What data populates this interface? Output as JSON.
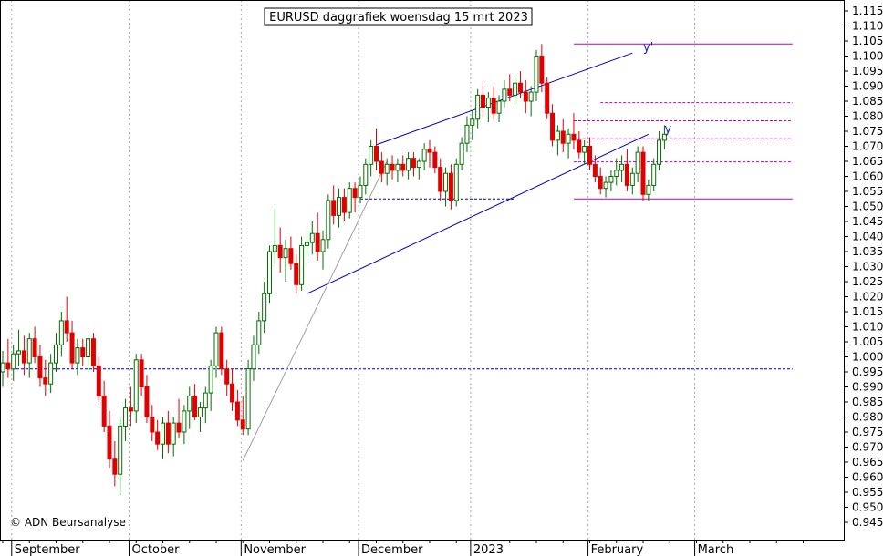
{
  "chart_data": {
    "type": "candlestick",
    "title": "EURUSD daggrafiek woensdag 15 mrt 2023",
    "copyright": "© ADN Beursanalyse",
    "ylim": [
      0.942,
      1.118
    ],
    "yticks": [
      "1.115",
      "1.110",
      "1.105",
      "1.100",
      "1.095",
      "1.090",
      "1.085",
      "1.080",
      "1.075",
      "1.070",
      "1.065",
      "1.060",
      "1.055",
      "1.050",
      "1.045",
      "1.040",
      "1.035",
      "1.030",
      "1.025",
      "1.020",
      "1.015",
      "1.010",
      "1.005",
      "1.000",
      "0.995",
      "0.990",
      "0.985",
      "0.980",
      "0.975",
      "0.970",
      "0.965",
      "0.960",
      "0.955",
      "0.950",
      "0.945"
    ],
    "months": [
      {
        "label": "September",
        "start_index": 2
      },
      {
        "label": "October",
        "start_index": 24
      },
      {
        "label": "November",
        "start_index": 45
      },
      {
        "label": "December",
        "start_index": 67
      },
      {
        "label": "2023",
        "start_index": 88
      },
      {
        "label": "February",
        "start_index": 110
      },
      {
        "label": "March",
        "start_index": 130
      }
    ],
    "candles": [
      [
        0.995,
        1.002,
        0.99,
        0.998
      ],
      [
        0.998,
        1.006,
        0.993,
        0.996
      ],
      [
        0.996,
        1.004,
        0.992,
        1.001
      ],
      [
        1.001,
        1.009,
        0.997,
        1.002
      ],
      [
        1.002,
        1.007,
        0.994,
        0.998
      ],
      [
        0.998,
        1.008,
        0.993,
        1.006
      ],
      [
        1.006,
        1.01,
        0.998,
        1.0
      ],
      [
        1.0,
        1.004,
        0.99,
        0.993
      ],
      [
        0.993,
        0.999,
        0.987,
        0.991
      ],
      [
        0.991,
        1.001,
        0.988,
        0.998
      ],
      [
        0.998,
        1.008,
        0.995,
        1.004
      ],
      [
        1.004,
        1.015,
        1.0,
        1.012
      ],
      [
        1.012,
        1.02,
        1.005,
        1.008
      ],
      [
        1.008,
        1.012,
        0.996,
        0.998
      ],
      [
        0.998,
        1.006,
        0.994,
        1.003
      ],
      [
        1.003,
        1.006,
        0.997,
        1.0
      ],
      [
        1.0,
        1.007,
        0.995,
        1.006
      ],
      [
        1.006,
        1.008,
        0.995,
        0.997
      ],
      [
        0.997,
        1.0,
        0.985,
        0.987
      ],
      [
        0.987,
        0.992,
        0.975,
        0.977
      ],
      [
        0.977,
        0.982,
        0.963,
        0.966
      ],
      [
        0.966,
        0.972,
        0.957,
        0.961
      ],
      [
        0.961,
        0.98,
        0.954,
        0.977
      ],
      [
        0.977,
        0.986,
        0.972,
        0.983
      ],
      [
        0.983,
        0.99,
        0.977,
        0.982
      ],
      [
        0.982,
        1.001,
        0.978,
        0.999
      ],
      [
        0.999,
        1.001,
        0.987,
        0.99
      ],
      [
        0.99,
        0.994,
        0.978,
        0.98
      ],
      [
        0.98,
        0.984,
        0.972,
        0.975
      ],
      [
        0.975,
        0.979,
        0.969,
        0.971
      ],
      [
        0.971,
        0.98,
        0.966,
        0.978
      ],
      [
        0.978,
        0.982,
        0.968,
        0.971
      ],
      [
        0.971,
        0.98,
        0.967,
        0.978
      ],
      [
        0.978,
        0.986,
        0.973,
        0.975
      ],
      [
        0.975,
        0.984,
        0.971,
        0.982
      ],
      [
        0.982,
        0.99,
        0.976,
        0.987
      ],
      [
        0.987,
        0.991,
        0.979,
        0.98
      ],
      [
        0.98,
        0.985,
        0.975,
        0.983
      ],
      [
        0.983,
        0.99,
        0.978,
        0.988
      ],
      [
        0.988,
        0.999,
        0.982,
        0.997
      ],
      [
        0.997,
        1.01,
        0.993,
        1.008
      ],
      [
        1.008,
        1.01,
        0.994,
        0.996
      ],
      [
        0.996,
        0.999,
        0.987,
        0.991
      ],
      [
        0.991,
        0.996,
        0.982,
        0.985
      ],
      [
        0.985,
        0.989,
        0.977,
        0.979
      ],
      [
        0.979,
        0.987,
        0.974,
        0.976
      ],
      [
        0.976,
        0.999,
        0.974,
        0.996
      ],
      [
        0.996,
        1.007,
        0.992,
        1.004
      ],
      [
        1.004,
        1.015,
        1.001,
        1.012
      ],
      [
        1.012,
        1.025,
        1.008,
        1.021
      ],
      [
        1.021,
        1.037,
        1.018,
        1.035
      ],
      [
        1.035,
        1.049,
        1.03,
        1.037
      ],
      [
        1.037,
        1.043,
        1.028,
        1.033
      ],
      [
        1.033,
        1.039,
        1.025,
        1.036
      ],
      [
        1.036,
        1.04,
        1.029,
        1.031
      ],
      [
        1.031,
        1.034,
        1.021,
        1.024
      ],
      [
        1.024,
        1.04,
        1.022,
        1.037
      ],
      [
        1.037,
        1.043,
        1.033,
        1.038
      ],
      [
        1.038,
        1.045,
        1.034,
        1.041
      ],
      [
        1.041,
        1.048,
        1.032,
        1.035
      ],
      [
        1.035,
        1.042,
        1.029,
        1.039
      ],
      [
        1.039,
        1.054,
        1.036,
        1.052
      ],
      [
        1.052,
        1.057,
        1.044,
        1.047
      ],
      [
        1.047,
        1.056,
        1.043,
        1.053
      ],
      [
        1.053,
        1.056,
        1.045,
        1.048
      ],
      [
        1.048,
        1.058,
        1.046,
        1.056
      ],
      [
        1.056,
        1.058,
        1.048,
        1.053
      ],
      [
        1.053,
        1.06,
        1.051,
        1.057
      ],
      [
        1.057,
        1.066,
        1.054,
        1.064
      ],
      [
        1.064,
        1.072,
        1.06,
        1.07
      ],
      [
        1.07,
        1.076,
        1.062,
        1.065
      ],
      [
        1.065,
        1.068,
        1.058,
        1.061
      ],
      [
        1.061,
        1.066,
        1.057,
        1.064
      ],
      [
        1.064,
        1.067,
        1.059,
        1.062
      ],
      [
        1.062,
        1.066,
        1.058,
        1.064
      ],
      [
        1.064,
        1.067,
        1.06,
        1.062
      ],
      [
        1.062,
        1.068,
        1.059,
        1.066
      ],
      [
        1.066,
        1.068,
        1.06,
        1.063
      ],
      [
        1.063,
        1.066,
        1.059,
        1.065
      ],
      [
        1.065,
        1.071,
        1.062,
        1.069
      ],
      [
        1.069,
        1.072,
        1.063,
        1.068
      ],
      [
        1.068,
        1.07,
        1.061,
        1.063
      ],
      [
        1.063,
        1.066,
        1.052,
        1.055
      ],
      [
        1.055,
        1.063,
        1.05,
        1.061
      ],
      [
        1.061,
        1.064,
        1.049,
        1.052
      ],
      [
        1.052,
        1.066,
        1.05,
        1.064
      ],
      [
        1.064,
        1.073,
        1.062,
        1.071
      ],
      [
        1.071,
        1.08,
        1.068,
        1.077
      ],
      [
        1.077,
        1.082,
        1.072,
        1.079
      ],
      [
        1.079,
        1.089,
        1.076,
        1.087
      ],
      [
        1.087,
        1.091,
        1.08,
        1.083
      ],
      [
        1.083,
        1.088,
        1.078,
        1.086
      ],
      [
        1.086,
        1.09,
        1.079,
        1.081
      ],
      [
        1.081,
        1.087,
        1.078,
        1.085
      ],
      [
        1.085,
        1.092,
        1.083,
        1.089
      ],
      [
        1.089,
        1.094,
        1.085,
        1.087
      ],
      [
        1.087,
        1.093,
        1.084,
        1.091
      ],
      [
        1.091,
        1.095,
        1.086,
        1.088
      ],
      [
        1.088,
        1.092,
        1.081,
        1.085
      ],
      [
        1.085,
        1.09,
        1.08,
        1.088
      ],
      [
        1.088,
        1.102,
        1.085,
        1.1
      ],
      [
        1.1,
        1.104,
        1.088,
        1.091
      ],
      [
        1.091,
        1.093,
        1.079,
        1.081
      ],
      [
        1.081,
        1.084,
        1.07,
        1.072
      ],
      [
        1.072,
        1.077,
        1.067,
        1.075
      ],
      [
        1.075,
        1.079,
        1.068,
        1.071
      ],
      [
        1.071,
        1.076,
        1.066,
        1.074
      ],
      [
        1.074,
        1.081,
        1.069,
        1.072
      ],
      [
        1.072,
        1.075,
        1.066,
        1.068
      ],
      [
        1.068,
        1.072,
        1.064,
        1.07
      ],
      [
        1.07,
        1.073,
        1.062,
        1.064
      ],
      [
        1.064,
        1.067,
        1.058,
        1.06
      ],
      [
        1.06,
        1.063,
        1.054,
        1.056
      ],
      [
        1.056,
        1.06,
        1.053,
        1.058
      ],
      [
        1.058,
        1.062,
        1.055,
        1.06
      ],
      [
        1.06,
        1.066,
        1.057,
        1.062
      ],
      [
        1.062,
        1.067,
        1.058,
        1.064
      ],
      [
        1.064,
        1.069,
        1.055,
        1.057
      ],
      [
        1.057,
        1.063,
        1.054,
        1.061
      ],
      [
        1.061,
        1.07,
        1.058,
        1.068
      ],
      [
        1.068,
        1.07,
        1.052,
        1.054
      ],
      [
        1.054,
        1.059,
        1.052,
        1.057
      ],
      [
        1.057,
        1.066,
        1.055,
        1.064
      ],
      [
        1.064,
        1.075,
        1.062,
        1.072
      ],
      [
        1.072,
        1.077,
        1.069,
        1.074
      ]
    ],
    "lines": [
      {
        "name": "support-hline",
        "color": "#0000a0",
        "dash": true,
        "from": [
          0,
          0.996
        ],
        "to": [
          148,
          0.996
        ]
      },
      {
        "name": "dec-low-hline",
        "color": "#0000a0",
        "dash": true,
        "from": [
          67,
          1.0525
        ],
        "to": [
          96,
          1.0525
        ]
      },
      {
        "name": "top-hline",
        "color": "#c000c0",
        "dash": false,
        "from": [
          107,
          1.104
        ],
        "to": [
          148,
          1.104
        ]
      },
      {
        "name": "bottom-hline",
        "color": "#c000c0",
        "dash": false,
        "from": [
          107,
          1.0525
        ],
        "to": [
          148,
          1.0525
        ]
      },
      {
        "name": "hline-1085",
        "color": "#c000c0",
        "dash": true,
        "from": [
          112,
          1.0845
        ],
        "to": [
          148,
          1.0845
        ]
      },
      {
        "name": "hline-1078",
        "color": "#c000c0",
        "dash": true,
        "from": [
          107,
          1.0785
        ],
        "to": [
          148,
          1.0785
        ]
      },
      {
        "name": "hline-1072",
        "color": "#c000c0",
        "dash": true,
        "from": [
          107,
          1.0725
        ],
        "to": [
          148,
          1.0725
        ]
      },
      {
        "name": "hline-1065",
        "color": "#c000c0",
        "dash": true,
        "from": [
          107,
          1.0648
        ],
        "to": [
          148,
          1.0648
        ]
      },
      {
        "name": "channel-top",
        "color": "#0000c0",
        "dash": false,
        "from": [
          70,
          1.0705
        ],
        "to": [
          118,
          1.101
        ]
      },
      {
        "name": "channel-bottom",
        "color": "#0000c0",
        "dash": false,
        "from": [
          57,
          1.021
        ],
        "to": [
          121,
          1.074
        ]
      },
      {
        "name": "grey-trend",
        "color": "#a0a0a0",
        "dash": false,
        "from": [
          45,
          0.9655
        ],
        "to": [
          72,
          1.065
        ]
      }
    ],
    "annotations": [
      {
        "text": "y'",
        "at": [
          120,
          1.1016
        ]
      },
      {
        "text": "y",
        "at": [
          124,
          1.0745
        ]
      }
    ],
    "colors": {
      "up_outline": "#007000",
      "up_fill": "#ffffff",
      "down_fill": "#e00000",
      "grid": "#a8a8a8"
    }
  }
}
